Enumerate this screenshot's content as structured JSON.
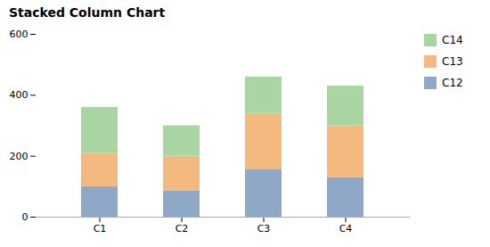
{
  "chart_data": {
    "type": "bar",
    "stacked": true,
    "title": "Stacked Column Chart",
    "categories": [
      "C1",
      "C2",
      "C3",
      "C4"
    ],
    "series": [
      {
        "name": "C12",
        "color": "#8fa8c8",
        "values": [
          100,
          85,
          155,
          130
        ]
      },
      {
        "name": "C13",
        "color": "#f4b97f",
        "values": [
          110,
          115,
          185,
          170
        ]
      },
      {
        "name": "C14",
        "color": "#a8d5a2",
        "values": [
          150,
          100,
          120,
          130
        ]
      }
    ],
    "ylim": [
      0,
      600
    ],
    "yticks": [
      0,
      200,
      400,
      600
    ],
    "grid": false,
    "legend": "right"
  }
}
